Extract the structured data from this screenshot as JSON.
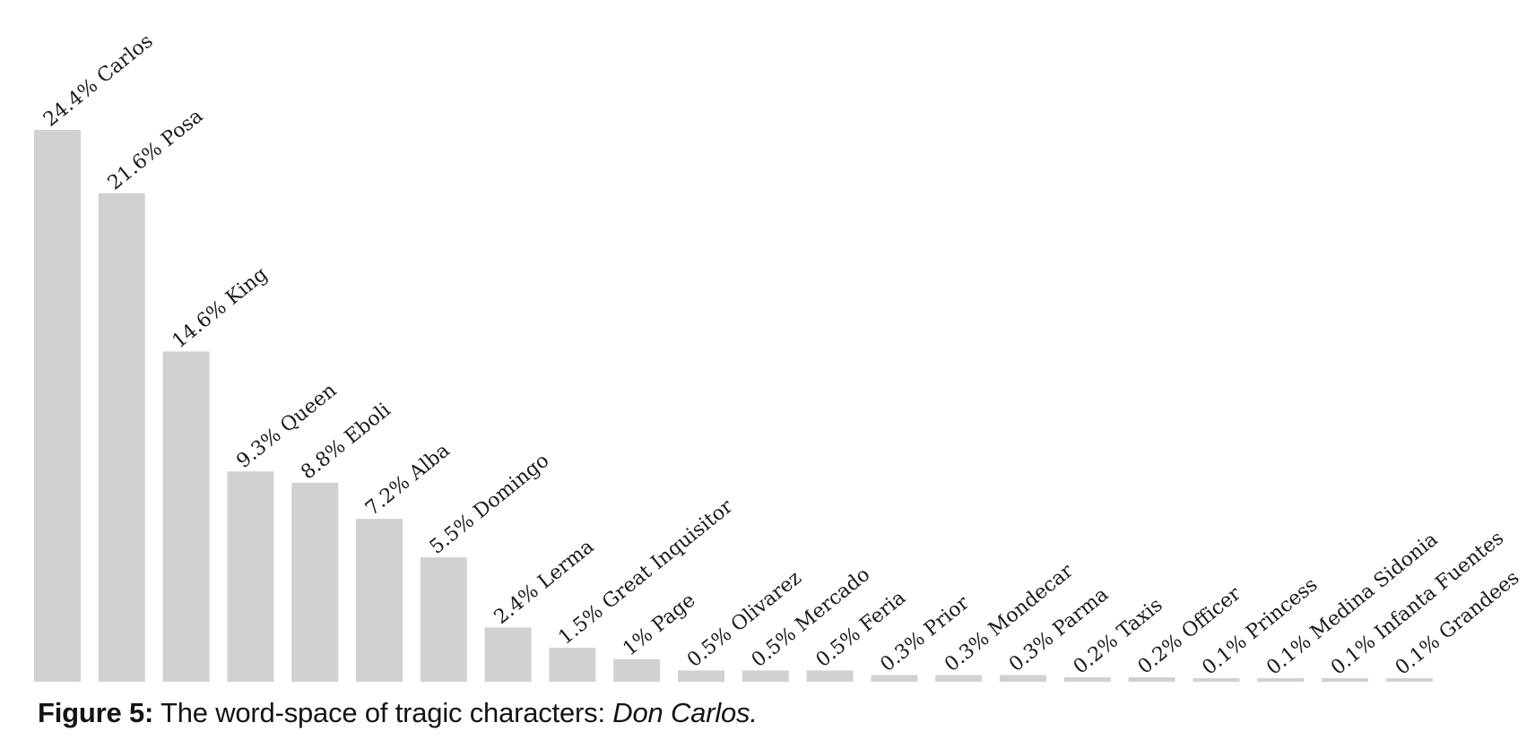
{
  "chart_data": {
    "type": "bar",
    "title": "The word-space of tragic characters: Don Carlos.",
    "xlabel": "",
    "ylabel": "",
    "ylim": [
      0,
      25
    ],
    "grid": false,
    "legend": "none",
    "value_suffix": "%",
    "categories": [
      "Carlos",
      "Posa",
      "King",
      "Queen",
      "Eboli",
      "Alba",
      "Domingo",
      "Lerma",
      "Great Inquisitor",
      "Page",
      "Olivarez",
      "Mercado",
      "Feria",
      "Prior",
      "Mondecar",
      "Parma",
      "Taxis",
      "Officer",
      "Princess",
      "Medina Sidonia",
      "Infanta Fuentes",
      "Grandees"
    ],
    "values": [
      24.4,
      21.6,
      14.6,
      9.3,
      8.8,
      7.2,
      5.5,
      2.4,
      1.5,
      1,
      0.5,
      0.5,
      0.5,
      0.3,
      0.3,
      0.3,
      0.2,
      0.2,
      0.1,
      0.1,
      0.1,
      0.1
    ],
    "labels": [
      "24.4% Carlos",
      "21.6% Posa",
      "14.6% King",
      "9.3% Queen",
      "8.8% Eboli",
      "7.2% Alba",
      "5.5% Domingo",
      "2.4% Lerma",
      "1.5% Great Inquisitor",
      "1% Page",
      "0.5% Olivarez",
      "0.5% Mercado",
      "0.5% Feria",
      "0.3% Prior",
      "0.3% Mondecar",
      "0.3% Parma",
      "0.2% Taxis",
      "0.2% Officer",
      "0.1% Princess",
      "0.1% Medina Sidonia",
      "0.1% Infanta Fuentes",
      "0.1% Grandees"
    ]
  },
  "caption": {
    "figure_number": "Figure 5:",
    "text": " The word-space of tragic characters: ",
    "emphasis": "Don Carlos."
  },
  "colors": {
    "bar": "#d1d1d3",
    "text": "#1a1a1a"
  }
}
